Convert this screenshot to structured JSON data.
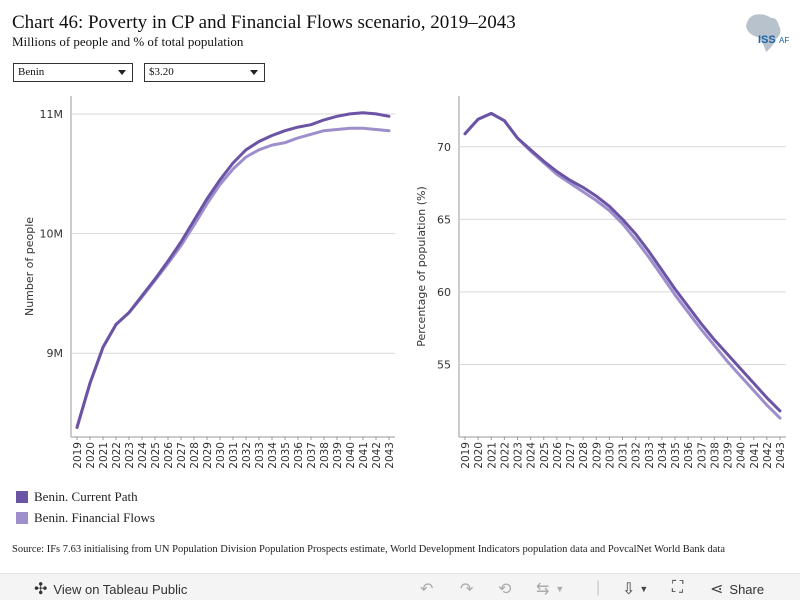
{
  "header": {
    "title": "Chart 46: Poverty in CP and Financial Flows scenario, 2019–2043",
    "subtitle": "Millions of people and % of total population",
    "logo_text": "ISS",
    "logo_suffix": "AFI"
  },
  "filters": {
    "country": "Benin",
    "poverty_line": "$3.20"
  },
  "colors": {
    "current_path": "#6b53a6",
    "financial_flows": "#9e8fcc",
    "grid": "#d9d9d9",
    "axis": "#999999"
  },
  "chart_data": [
    {
      "type": "line",
      "title": "",
      "xlabel": "",
      "ylabel": "Number of people",
      "ylim": [
        8.3,
        11.15
      ],
      "yticks": [
        9,
        10,
        11
      ],
      "ytick_labels": [
        "9M",
        "10M",
        "11M"
      ],
      "x": [
        "2019",
        "2020",
        "2021",
        "2022",
        "2023",
        "2024",
        "2025",
        "2026",
        "2027",
        "2028",
        "2029",
        "2030",
        "2031",
        "2032",
        "2033",
        "2034",
        "2035",
        "2036",
        "2037",
        "2038",
        "2039",
        "2040",
        "2041",
        "2042",
        "2043"
      ],
      "series": [
        {
          "name": "Benin. Current Path",
          "values": [
            8.38,
            8.75,
            9.05,
            9.24,
            9.34,
            9.48,
            9.62,
            9.77,
            9.93,
            10.11,
            10.29,
            10.45,
            10.59,
            10.7,
            10.77,
            10.82,
            10.86,
            10.89,
            10.91,
            10.95,
            10.98,
            11.0,
            11.01,
            11.0,
            10.98
          ]
        },
        {
          "name": "Benin. Financial Flows",
          "values": [
            8.38,
            8.75,
            9.05,
            9.24,
            9.34,
            9.47,
            9.61,
            9.75,
            9.9,
            10.07,
            10.25,
            10.41,
            10.54,
            10.64,
            10.7,
            10.74,
            10.76,
            10.8,
            10.83,
            10.86,
            10.87,
            10.88,
            10.88,
            10.87,
            10.86
          ]
        }
      ]
    },
    {
      "type": "line",
      "title": "",
      "xlabel": "",
      "ylabel": "Percentage of population (%)",
      "ylim": [
        50,
        73.5
      ],
      "yticks": [
        55,
        60,
        65,
        70
      ],
      "ytick_labels": [
        "55",
        "60",
        "65",
        "70"
      ],
      "x": [
        "2019",
        "2020",
        "2021",
        "2022",
        "2023",
        "2024",
        "2025",
        "2026",
        "2027",
        "2028",
        "2029",
        "2030",
        "2031",
        "2032",
        "2033",
        "2034",
        "2035",
        "2036",
        "2037",
        "2038",
        "2039",
        "2040",
        "2041",
        "2042",
        "2043"
      ],
      "series": [
        {
          "name": "Benin. Current Path",
          "values": [
            70.9,
            71.9,
            72.3,
            71.8,
            70.6,
            69.8,
            69.0,
            68.3,
            67.7,
            67.2,
            66.6,
            65.9,
            65.0,
            64.0,
            62.8,
            61.5,
            60.2,
            59.0,
            57.8,
            56.7,
            55.7,
            54.7,
            53.7,
            52.7,
            51.8
          ]
        },
        {
          "name": "Benin. Financial Flows",
          "values": [
            70.9,
            71.9,
            72.3,
            71.8,
            70.6,
            69.7,
            68.9,
            68.1,
            67.5,
            66.9,
            66.3,
            65.6,
            64.7,
            63.6,
            62.4,
            61.1,
            59.8,
            58.6,
            57.4,
            56.3,
            55.2,
            54.2,
            53.2,
            52.2,
            51.3
          ]
        }
      ]
    }
  ],
  "legend": {
    "items": [
      {
        "label": "Benin. Current Path"
      },
      {
        "label": "Benin. Financial Flows"
      }
    ]
  },
  "source": "Source: IFs 7.63 initialising from UN Population Division Population Prospects estimate, World Development Indicators population data and PovcalNet World Bank data",
  "toolbar": {
    "view_label": "View on Tableau Public",
    "share_label": "Share"
  }
}
